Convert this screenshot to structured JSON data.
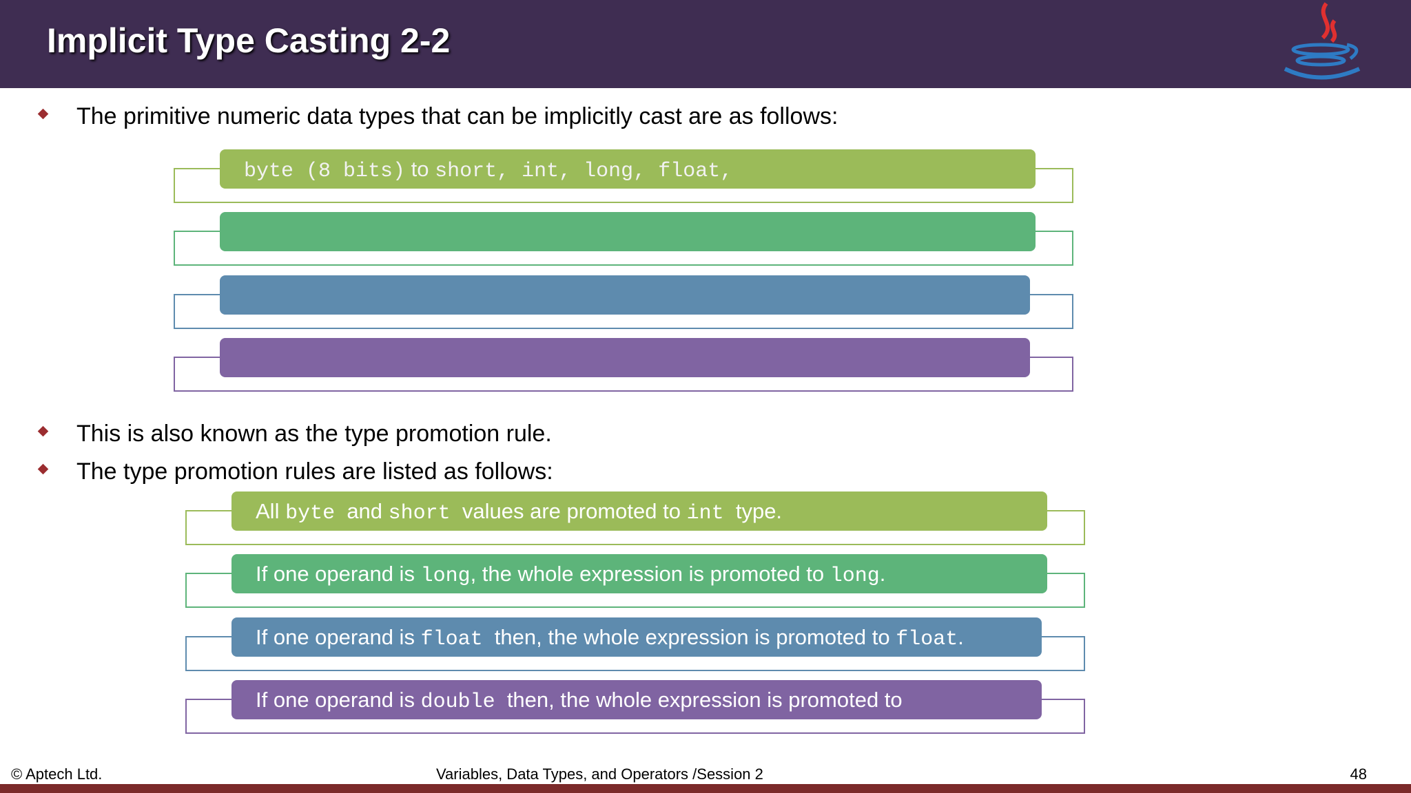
{
  "header": {
    "title": "Implicit Type Casting 2-2"
  },
  "bullets_top": [
    "The primitive numeric data types that can be implicitly cast are as follows:"
  ],
  "cast_boxes": [
    {
      "color": "#9bbb59",
      "segments": [
        {
          "code": "byte (8 bits)"
        },
        {
          "text": " to "
        },
        {
          "code": "short, int, long, float,"
        }
      ]
    },
    {
      "color": "#5db47a",
      "segments": []
    },
    {
      "color": "#5e8bae",
      "segments": []
    },
    {
      "color": "#8064a2",
      "segments": []
    }
  ],
  "bullets_mid": [
    "This is also known as the type promotion rule.",
    "The type promotion rules are listed as follows:"
  ],
  "rule_boxes": [
    {
      "color": "#9bbb59",
      "segments": [
        {
          "text": "All "
        },
        {
          "code": "byte"
        },
        {
          "text": "  and "
        },
        {
          "code": "short"
        },
        {
          "text": "  values are promoted to "
        },
        {
          "code": "int"
        },
        {
          "text": "  type."
        }
      ]
    },
    {
      "color": "#5db47a",
      "segments": [
        {
          "text": "If one operand is "
        },
        {
          "code": "long"
        },
        {
          "text": ", the whole expression is promoted to "
        },
        {
          "code": "long"
        },
        {
          "text": "."
        }
      ]
    },
    {
      "color": "#5e8bae",
      "segments": [
        {
          "text": "If one operand is "
        },
        {
          "code": "float"
        },
        {
          "text": "  then, the whole expression is promoted to "
        },
        {
          "code": "float"
        },
        {
          "text": "."
        }
      ]
    },
    {
      "color": "#8064a2",
      "segments": [
        {
          "text": "If one operand is "
        },
        {
          "code": "double"
        },
        {
          "text": "  then, the whole expression is promoted to"
        }
      ]
    }
  ],
  "footer": {
    "left": "© Aptech Ltd.",
    "center": "Variables, Data Types, and Operators /Session 2",
    "page": "48"
  }
}
